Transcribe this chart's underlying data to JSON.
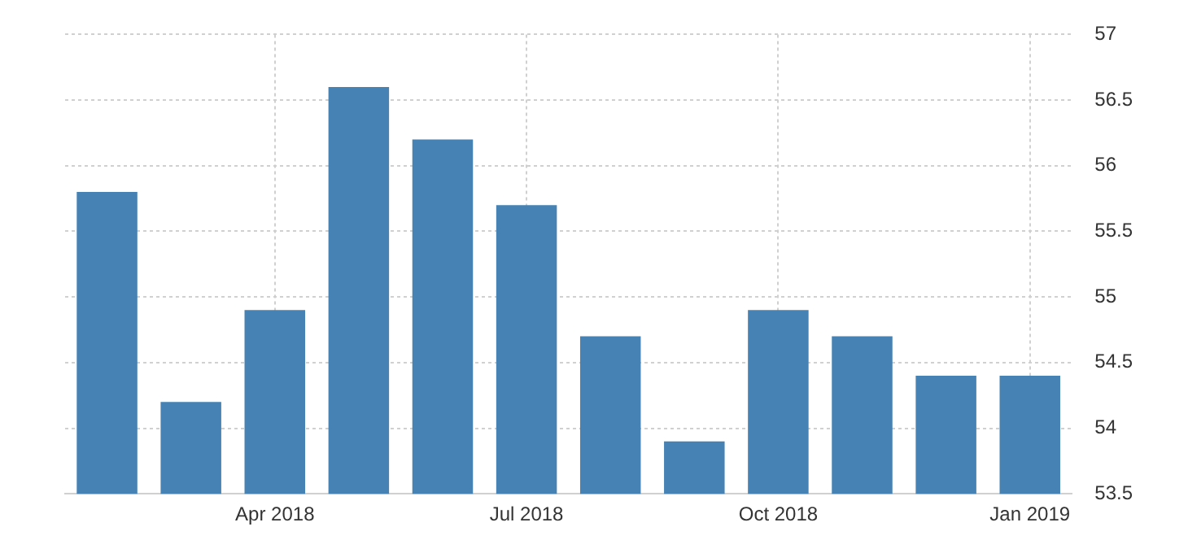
{
  "chart_data": {
    "type": "bar",
    "categories": [
      null,
      null,
      "Apr 2018",
      null,
      null,
      "Jul 2018",
      null,
      null,
      "Oct 2018",
      null,
      null,
      "Jan 2019"
    ],
    "series": [
      {
        "color": "#4682b4",
        "values": [
          55.8,
          54.2,
          54.9,
          56.6,
          56.2,
          55.7,
          54.7,
          53.9,
          54.9,
          54.7,
          54.4,
          54.4
        ]
      }
    ],
    "ylim": [
      53.5,
      57
    ],
    "yticks": [
      53.5,
      54,
      54.5,
      55,
      55.5,
      56,
      56.5,
      57
    ],
    "grid": true
  }
}
